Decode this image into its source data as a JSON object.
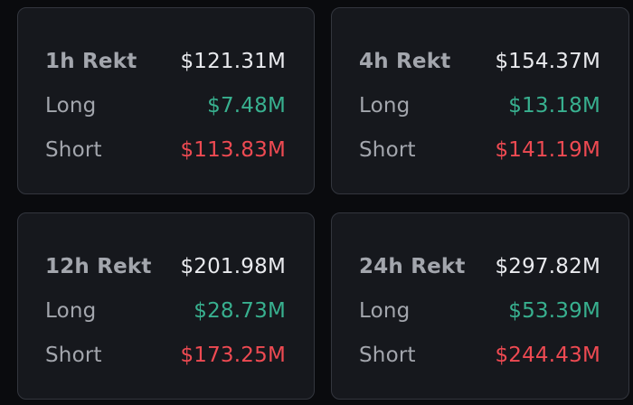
{
  "cards": [
    {
      "title": "1h Rekt",
      "total": "$121.31M",
      "long_label": "Long",
      "long_value": "$7.48M",
      "short_label": "Short",
      "short_value": "$113.83M"
    },
    {
      "title": "4h Rekt",
      "total": "$154.37M",
      "long_label": "Long",
      "long_value": "$13.18M",
      "short_label": "Short",
      "short_value": "$141.19M"
    },
    {
      "title": "12h Rekt",
      "total": "$201.98M",
      "long_label": "Long",
      "long_value": "$28.73M",
      "short_label": "Short",
      "short_value": "$173.25M"
    },
    {
      "title": "24h Rekt",
      "total": "$297.82M",
      "long_label": "Long",
      "long_value": "$53.39M",
      "short_label": "Short",
      "short_value": "$244.43M"
    }
  ],
  "colors": {
    "long": "#38b08f",
    "short": "#ee4a52",
    "card_background": "#16181d",
    "page_background": "#0a0b0e"
  }
}
